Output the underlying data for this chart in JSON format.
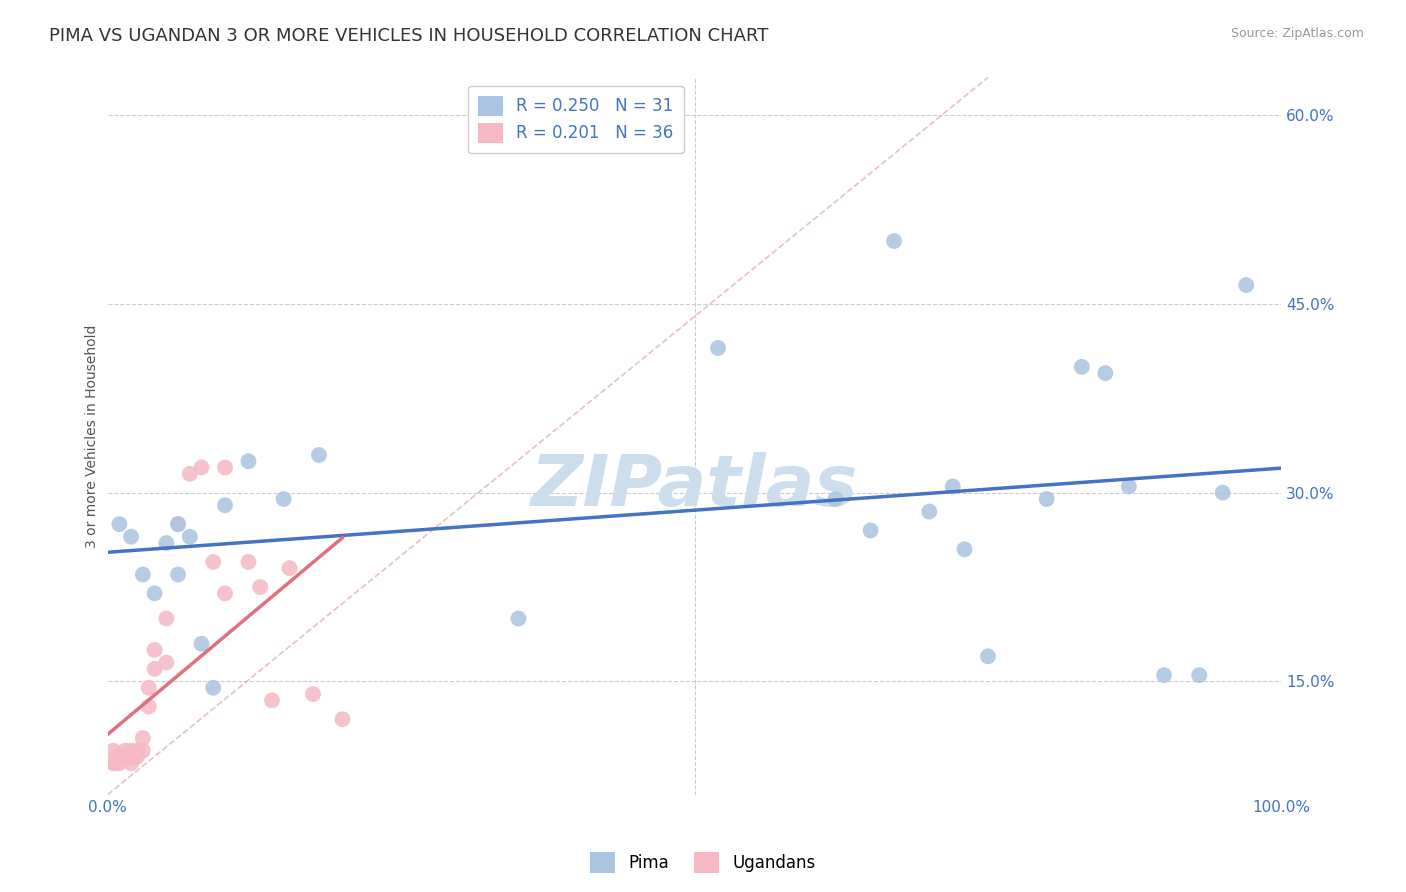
{
  "title": "PIMA VS UGANDAN 3 OR MORE VEHICLES IN HOUSEHOLD CORRELATION CHART",
  "source": "Source: ZipAtlas.com",
  "ylabel": "3 or more Vehicles in Household",
  "legend_pima": "R = 0.250   N = 31",
  "legend_ugandan": "R = 0.201   N = 36",
  "watermark": "ZIPatlas",
  "pima_x": [
    0.01,
    0.02,
    0.03,
    0.04,
    0.05,
    0.06,
    0.06,
    0.07,
    0.08,
    0.09,
    0.1,
    0.12,
    0.15,
    0.18,
    0.35,
    0.52,
    0.62,
    0.65,
    0.67,
    0.7,
    0.72,
    0.73,
    0.75,
    0.8,
    0.83,
    0.85,
    0.87,
    0.9,
    0.93,
    0.95,
    0.97
  ],
  "pima_y": [
    0.275,
    0.265,
    0.235,
    0.22,
    0.26,
    0.275,
    0.235,
    0.265,
    0.18,
    0.145,
    0.29,
    0.325,
    0.295,
    0.33,
    0.2,
    0.415,
    0.295,
    0.27,
    0.5,
    0.285,
    0.305,
    0.255,
    0.17,
    0.295,
    0.4,
    0.395,
    0.305,
    0.155,
    0.155,
    0.3,
    0.465
  ],
  "ugandan_x": [
    0.005,
    0.005,
    0.007,
    0.008,
    0.009,
    0.01,
    0.01,
    0.012,
    0.015,
    0.015,
    0.018,
    0.02,
    0.02,
    0.022,
    0.025,
    0.025,
    0.03,
    0.03,
    0.035,
    0.035,
    0.04,
    0.04,
    0.05,
    0.05,
    0.06,
    0.07,
    0.08,
    0.09,
    0.1,
    0.1,
    0.12,
    0.13,
    0.14,
    0.155,
    0.175,
    0.2
  ],
  "ugandan_y": [
    0.085,
    0.095,
    0.085,
    0.09,
    0.088,
    0.09,
    0.085,
    0.09,
    0.095,
    0.09,
    0.09,
    0.095,
    0.085,
    0.09,
    0.095,
    0.09,
    0.105,
    0.095,
    0.145,
    0.13,
    0.175,
    0.16,
    0.2,
    0.165,
    0.275,
    0.315,
    0.32,
    0.245,
    0.32,
    0.22,
    0.245,
    0.225,
    0.135,
    0.24,
    0.14,
    0.12
  ],
  "pima_color": "#a8c4e0",
  "ugandan_color": "#f5b8c4",
  "pima_line_color": "#4472c4",
  "ugandan_line_color": "#e07080",
  "diagonal_color": "#e8b8c0",
  "xlim": [
    0.0,
    1.0
  ],
  "ylim": [
    0.06,
    0.63
  ],
  "yticks": [
    0.15,
    0.3,
    0.45,
    0.6
  ],
  "yticklabels": [
    "15.0%",
    "30.0%",
    "45.0%",
    "60.0%"
  ],
  "xtick_left": "0.0%",
  "xtick_right": "100.0%",
  "grid_color": "#cccccc",
  "background_color": "#ffffff",
  "title_fontsize": 13,
  "axis_label_fontsize": 10,
  "tick_fontsize": 11,
  "watermark_color": "#ccdded",
  "watermark_fontsize": 52
}
